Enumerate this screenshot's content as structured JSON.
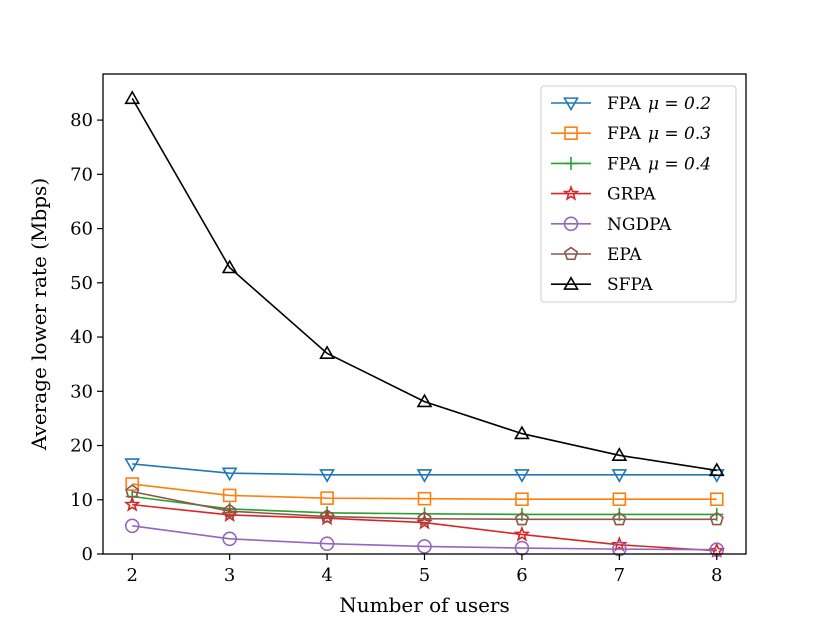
{
  "chart_data": {
    "type": "line",
    "title": "",
    "xlabel": "Number of users",
    "ylabel": "Average lower rate (Mbps)",
    "x": [
      2,
      3,
      4,
      5,
      6,
      7,
      8
    ],
    "xlim": [
      1.7,
      8.3
    ],
    "ylim": [
      0,
      88.5
    ],
    "xticks": [
      "2",
      "3",
      "4",
      "5",
      "6",
      "7",
      "8"
    ],
    "yticks": [
      "0",
      "10",
      "20",
      "30",
      "40",
      "50",
      "60",
      "70",
      "80"
    ],
    "ytick_values": [
      0,
      10,
      20,
      30,
      40,
      50,
      60,
      70,
      80
    ],
    "grid": false,
    "legend_position": "top-right",
    "series": [
      {
        "name": "FPA μ = 0.2",
        "name_prefix": "FPA",
        "name_math": "μ = 0.2",
        "color": "#1f77b4",
        "marker": "triangle-down",
        "values": [
          16.6,
          14.9,
          14.6,
          14.6,
          14.6,
          14.6,
          14.6
        ]
      },
      {
        "name": "FPA μ = 0.3",
        "name_prefix": "FPA",
        "name_math": "μ = 0.3",
        "color": "#ff7f0e",
        "marker": "square",
        "values": [
          12.9,
          10.8,
          10.3,
          10.2,
          10.1,
          10.1,
          10.1
        ]
      },
      {
        "name": "FPA μ = 0.4",
        "name_prefix": "FPA",
        "name_math": "μ = 0.4",
        "color": "#2ca02c",
        "marker": "plus",
        "values": [
          10.6,
          8.3,
          7.6,
          7.4,
          7.3,
          7.3,
          7.3
        ]
      },
      {
        "name": "GRPA",
        "name_prefix": "GRPA",
        "name_math": "",
        "color": "#d62728",
        "marker": "star",
        "values": [
          9.1,
          7.2,
          6.6,
          5.8,
          3.6,
          1.7,
          0.6
        ]
      },
      {
        "name": "NGDPA",
        "name_prefix": "NGDPA",
        "name_math": "",
        "color": "#9467bd",
        "marker": "circle",
        "values": [
          5.2,
          2.8,
          1.9,
          1.4,
          1.1,
          0.9,
          0.8
        ]
      },
      {
        "name": "EPA",
        "name_prefix": "EPA",
        "name_math": "",
        "color": "#8c564b",
        "marker": "pentagon",
        "values": [
          11.5,
          7.9,
          6.9,
          6.5,
          6.4,
          6.4,
          6.4
        ]
      },
      {
        "name": "SFPA",
        "name_prefix": "SFPA",
        "name_math": "",
        "color": "#000000",
        "marker": "triangle-up",
        "values": [
          84.0,
          52.8,
          37.0,
          28.1,
          22.2,
          18.2,
          15.4
        ]
      }
    ]
  }
}
